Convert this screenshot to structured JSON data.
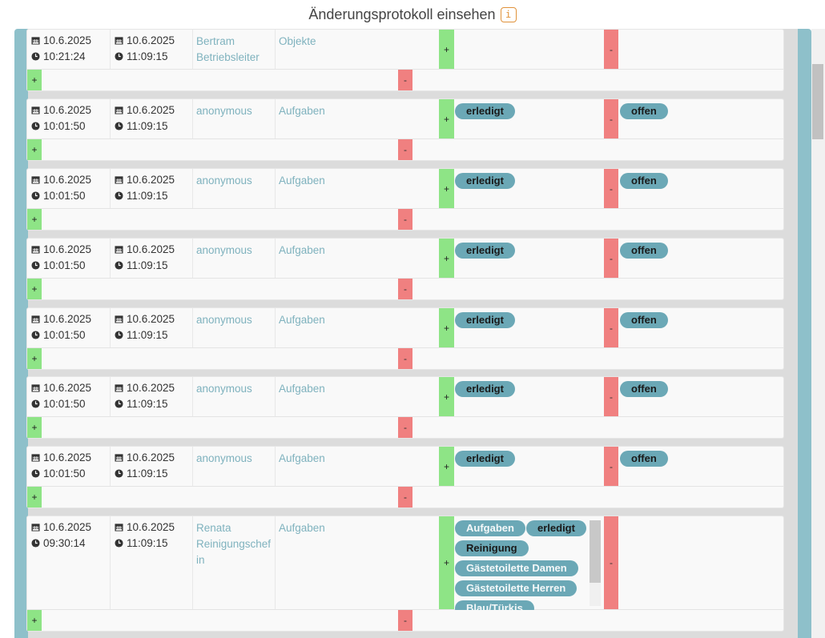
{
  "header": {
    "title": "Änderungsprotokoll einsehen",
    "info_icon": "i"
  },
  "symbols": {
    "plus": "+",
    "minus": "-"
  },
  "entries": [
    {
      "date1": "10.6.2025",
      "time1": "10:21:24",
      "date2": "10.6.2025",
      "time2": "11:09:15",
      "user": "Bertram Betriebsleiter",
      "category": "Objekte",
      "new_value": "",
      "old_value": ""
    },
    {
      "date1": "10.6.2025",
      "time1": "10:01:50",
      "date2": "10.6.2025",
      "time2": "11:09:15",
      "user": "anonymous",
      "category": "Aufgaben",
      "new_value": "erledigt",
      "old_value": "offen"
    },
    {
      "date1": "10.6.2025",
      "time1": "10:01:50",
      "date2": "10.6.2025",
      "time2": "11:09:15",
      "user": "anonymous",
      "category": "Aufgaben",
      "new_value": "erledigt",
      "old_value": "offen"
    },
    {
      "date1": "10.6.2025",
      "time1": "10:01:50",
      "date2": "10.6.2025",
      "time2": "11:09:15",
      "user": "anonymous",
      "category": "Aufgaben",
      "new_value": "erledigt",
      "old_value": "offen"
    },
    {
      "date1": "10.6.2025",
      "time1": "10:01:50",
      "date2": "10.6.2025",
      "time2": "11:09:15",
      "user": "anonymous",
      "category": "Aufgaben",
      "new_value": "erledigt",
      "old_value": "offen"
    },
    {
      "date1": "10.6.2025",
      "time1": "10:01:50",
      "date2": "10.6.2025",
      "time2": "11:09:15",
      "user": "anonymous",
      "category": "Aufgaben",
      "new_value": "erledigt",
      "old_value": "offen"
    },
    {
      "date1": "10.6.2025",
      "time1": "10:01:50",
      "date2": "10.6.2025",
      "time2": "11:09:15",
      "user": "anonymous",
      "category": "Aufgaben",
      "new_value": "erledigt",
      "old_value": "offen"
    },
    {
      "date1": "10.6.2025",
      "time1": "09:30:14",
      "date2": "10.6.2025",
      "time2": "11:09:15",
      "user": "Renata Reinigungschef in",
      "category": "Aufgaben",
      "tags": [
        "Aufgaben",
        "erledigt",
        "Reinigung",
        "Gästetoilette Damen",
        "Gästetoilette Herren",
        "Blau/Türkis"
      ]
    }
  ],
  "colors": {
    "accent": "#6ba8b6",
    "plus": "#8ee486",
    "minus": "#f08080",
    "link": "#7fb2be",
    "panel": "#8ec0ca"
  }
}
